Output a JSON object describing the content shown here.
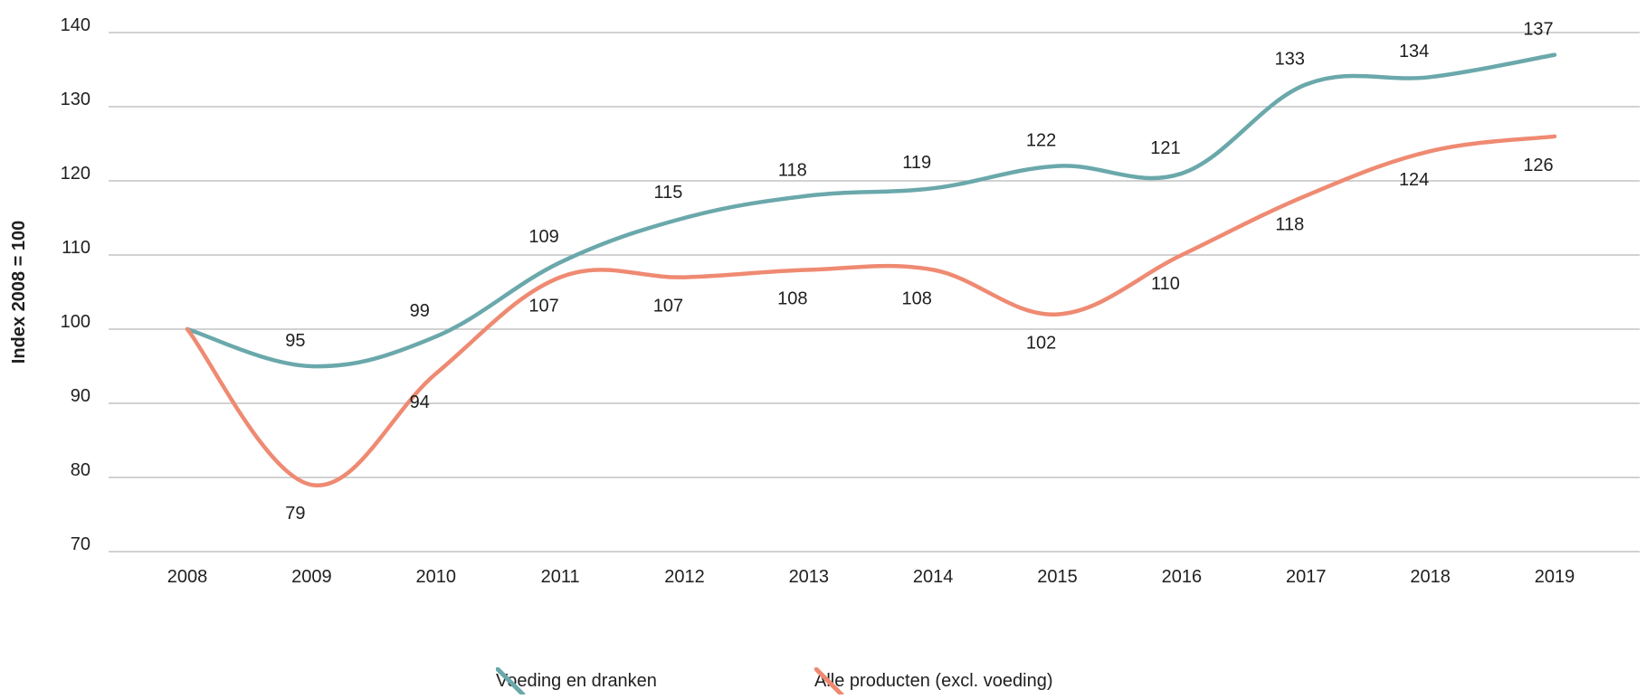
{
  "chart_data": {
    "type": "line",
    "title": "",
    "xlabel": "",
    "ylabel": "Index 2008 = 100",
    "categories": [
      "2008",
      "2009",
      "2010",
      "2011",
      "2012",
      "2013",
      "2014",
      "2015",
      "2016",
      "2017",
      "2018",
      "2019"
    ],
    "yticks": [
      70,
      80,
      90,
      100,
      110,
      120,
      130,
      140
    ],
    "ylim": [
      70,
      140
    ],
    "grid": true,
    "legend_position": "bottom-center",
    "series": [
      {
        "name": "Voeding en dranken",
        "color": "#6aa8ab",
        "values": [
          100,
          95,
          99,
          109,
          115,
          118,
          119,
          122,
          121,
          133,
          134,
          137
        ],
        "labels": [
          "",
          "95",
          "99",
          "109",
          "115",
          "118",
          "119",
          "122",
          "121",
          "133",
          "134",
          "137"
        ]
      },
      {
        "name": "Alle producten (excl. voeding)",
        "color": "#ef8a72",
        "values": [
          100,
          79,
          94,
          107,
          107,
          108,
          108,
          102,
          110,
          118,
          124,
          126
        ],
        "labels": [
          "",
          "79",
          "94",
          "107",
          "107",
          "108",
          "108",
          "102",
          "110",
          "118",
          "124",
          "126"
        ]
      }
    ]
  }
}
